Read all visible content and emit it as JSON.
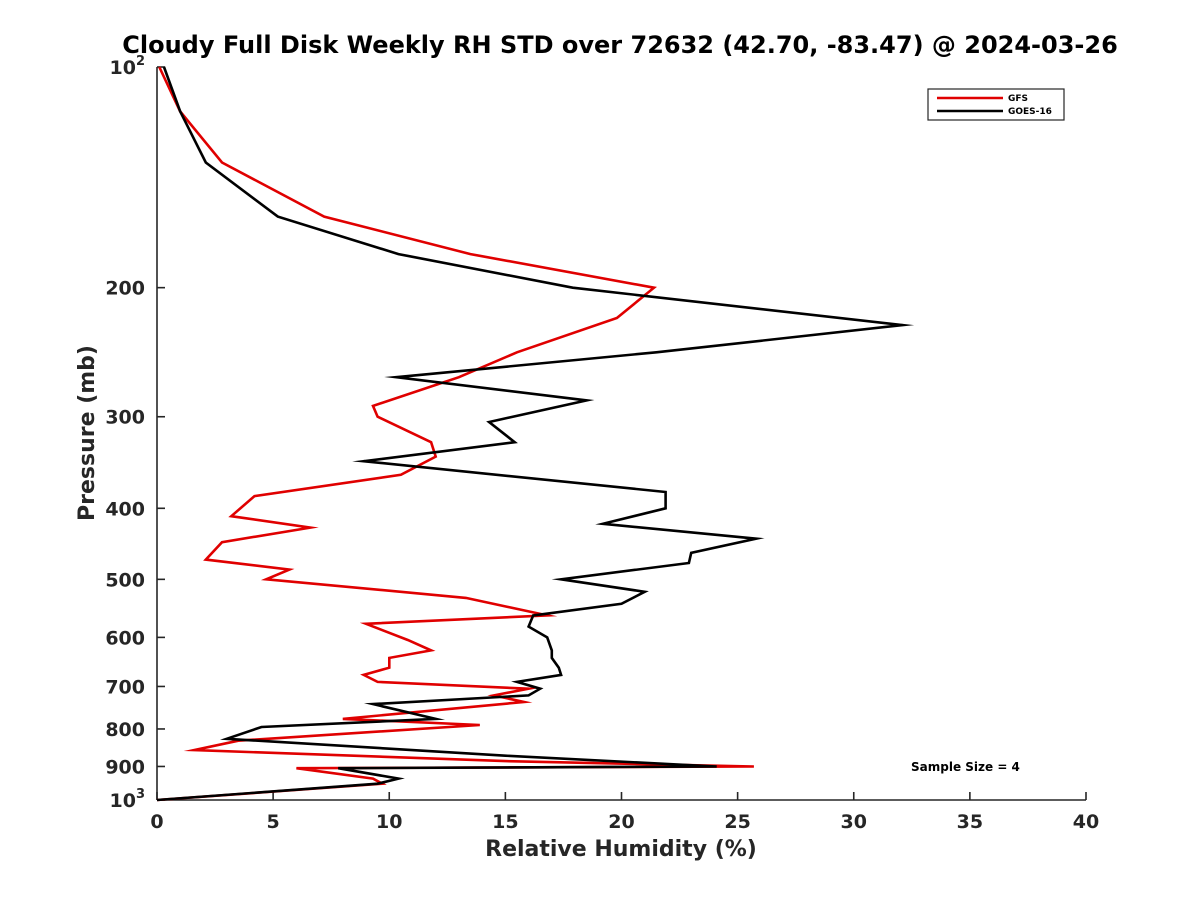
{
  "chart_data": {
    "type": "line",
    "title": "Cloudy Full Disk Weekly RH STD over 72632 (42.70, -83.47) @ 2024-03-26",
    "xlabel": "Relative Humidity (%)",
    "ylabel": "Pressure (mb)",
    "xlim": [
      0,
      40
    ],
    "ylim": [
      100,
      1000
    ],
    "y_scale": "log",
    "y_reversed": true,
    "x_ticks": [
      "0",
      "5",
      "10",
      "15",
      "20",
      "25",
      "30",
      "35",
      "40"
    ],
    "y_ticks": [
      {
        "value": 100,
        "base": "10",
        "exp": "2"
      },
      {
        "value": 200,
        "label": "200"
      },
      {
        "value": 300,
        "label": "300"
      },
      {
        "value": 400,
        "label": "400"
      },
      {
        "value": 500,
        "label": "500"
      },
      {
        "value": 600,
        "label": "600"
      },
      {
        "value": 700,
        "label": "700"
      },
      {
        "value": 800,
        "label": "800"
      },
      {
        "value": 900,
        "label": "900"
      },
      {
        "value": 1000,
        "base": "10",
        "exp": "3"
      }
    ],
    "grid": false,
    "legend_position": "top-right",
    "annotation": "Sample Size = 4",
    "series": [
      {
        "name": "GFS",
        "color": "#e00000",
        "points": [
          [
            0.1,
            100
          ],
          [
            1.0,
            115
          ],
          [
            2.8,
            135
          ],
          [
            7.2,
            160
          ],
          [
            13.5,
            180
          ],
          [
            21.4,
            200
          ],
          [
            19.8,
            220
          ],
          [
            15.5,
            245
          ],
          [
            13.0,
            265
          ],
          [
            9.3,
            290
          ],
          [
            9.5,
            300
          ],
          [
            11.8,
            325
          ],
          [
            12.0,
            340
          ],
          [
            10.5,
            360
          ],
          [
            4.2,
            385
          ],
          [
            3.2,
            410
          ],
          [
            6.6,
            425
          ],
          [
            2.8,
            445
          ],
          [
            2.1,
            470
          ],
          [
            5.7,
            485
          ],
          [
            4.7,
            500
          ],
          [
            13.3,
            530
          ],
          [
            16.8,
            560
          ],
          [
            9.0,
            575
          ],
          [
            10.8,
            605
          ],
          [
            11.8,
            625
          ],
          [
            10.0,
            640
          ],
          [
            10.0,
            660
          ],
          [
            8.9,
            675
          ],
          [
            9.5,
            690
          ],
          [
            16.0,
            705
          ],
          [
            14.5,
            720
          ],
          [
            15.8,
            735
          ],
          [
            8.0,
            775
          ],
          [
            13.9,
            790
          ],
          [
            3.5,
            830
          ],
          [
            1.6,
            855
          ],
          [
            15.0,
            885
          ],
          [
            25.7,
            900
          ],
          [
            6.0,
            905
          ],
          [
            9.3,
            935
          ],
          [
            9.7,
            950
          ],
          [
            0.0,
            1000
          ]
        ]
      },
      {
        "name": "GOES-16",
        "color": "#000000",
        "points": [
          [
            0.3,
            100
          ],
          [
            1.0,
            115
          ],
          [
            2.1,
            135
          ],
          [
            5.2,
            160
          ],
          [
            10.4,
            180
          ],
          [
            17.9,
            200
          ],
          [
            32.1,
            225
          ],
          [
            21.5,
            245
          ],
          [
            10.3,
            265
          ],
          [
            18.5,
            285
          ],
          [
            14.3,
            305
          ],
          [
            15.4,
            325
          ],
          [
            8.9,
            345
          ],
          [
            21.9,
            380
          ],
          [
            21.9,
            400
          ],
          [
            19.2,
            420
          ],
          [
            25.8,
            440
          ],
          [
            23.0,
            460
          ],
          [
            22.9,
            475
          ],
          [
            17.4,
            500
          ],
          [
            21.0,
            520
          ],
          [
            20.0,
            540
          ],
          [
            16.2,
            560
          ],
          [
            16.0,
            580
          ],
          [
            16.8,
            600
          ],
          [
            17.0,
            625
          ],
          [
            17.0,
            640
          ],
          [
            17.3,
            660
          ],
          [
            17.4,
            675
          ],
          [
            15.5,
            690
          ],
          [
            16.5,
            705
          ],
          [
            16.0,
            720
          ],
          [
            9.3,
            740
          ],
          [
            12.0,
            775
          ],
          [
            4.5,
            795
          ],
          [
            3.0,
            825
          ],
          [
            15.0,
            870
          ],
          [
            24.1,
            900
          ],
          [
            7.8,
            905
          ],
          [
            10.4,
            935
          ],
          [
            9.5,
            950
          ],
          [
            0.0,
            1000
          ]
        ]
      }
    ]
  }
}
